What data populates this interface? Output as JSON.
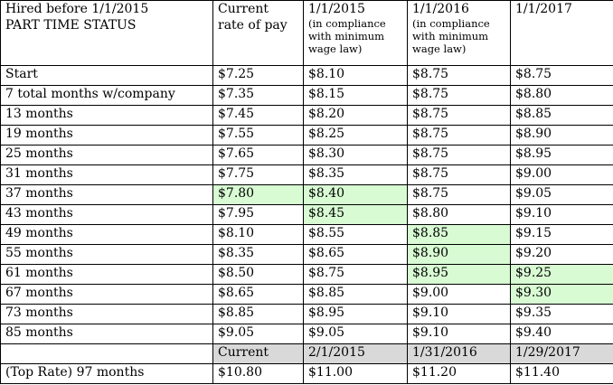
{
  "header": {
    "row_label_lines": [
      "Hired before 1/1/2015",
      "PART TIME STATUS"
    ],
    "columns": [
      {
        "lines": [
          "Current",
          "rate of pay"
        ],
        "sub": []
      },
      {
        "lines": [
          "1/1/2015"
        ],
        "sub": [
          "(in compliance",
          "with minimum",
          "wage law)"
        ]
      },
      {
        "lines": [
          "1/1/2016"
        ],
        "sub": [
          "(in compliance",
          "with minimum",
          "wage law)"
        ]
      },
      {
        "lines": [
          "1/1/2017"
        ],
        "sub": []
      }
    ]
  },
  "rows": [
    {
      "label": "Start",
      "values": [
        "$7.25",
        "$8.10",
        "$8.75",
        "$8.75"
      ],
      "highlight": [
        false,
        false,
        false,
        false
      ]
    },
    {
      "label": "7 total months w/company",
      "values": [
        "$7.35",
        "$8.15",
        "$8.75",
        "$8.80"
      ],
      "highlight": [
        false,
        false,
        false,
        false
      ]
    },
    {
      "label": "13 months",
      "values": [
        "$7.45",
        "$8.20",
        "$8.75",
        "$8.85"
      ],
      "highlight": [
        false,
        false,
        false,
        false
      ]
    },
    {
      "label": "19 months",
      "values": [
        "$7.55",
        "$8.25",
        "$8.75",
        "$8.90"
      ],
      "highlight": [
        false,
        false,
        false,
        false
      ]
    },
    {
      "label": "25 months",
      "values": [
        "$7.65",
        "$8.30",
        "$8.75",
        "$8.95"
      ],
      "highlight": [
        false,
        false,
        false,
        false
      ]
    },
    {
      "label": "31 months",
      "values": [
        "$7.75",
        "$8.35",
        "$8.75",
        "$9.00"
      ],
      "highlight": [
        false,
        false,
        false,
        false
      ]
    },
    {
      "label": "37 months",
      "values": [
        "$7.80",
        "$8.40",
        "$8.75",
        "$9.05"
      ],
      "highlight": [
        true,
        true,
        false,
        false
      ]
    },
    {
      "label": "43 months",
      "values": [
        "$7.95",
        "$8.45",
        "$8.80",
        "$9.10"
      ],
      "highlight": [
        false,
        true,
        false,
        false
      ]
    },
    {
      "label": "49 months",
      "values": [
        "$8.10",
        "$8.55",
        "$8.85",
        "$9.15"
      ],
      "highlight": [
        false,
        false,
        true,
        false
      ]
    },
    {
      "label": "55 months",
      "values": [
        "$8.35",
        "$8.65",
        "$8.90",
        "$9.20"
      ],
      "highlight": [
        false,
        false,
        true,
        false
      ]
    },
    {
      "label": "61 months",
      "values": [
        "$8.50",
        "$8.75",
        "$8.95",
        "$9.25"
      ],
      "highlight": [
        false,
        false,
        true,
        true
      ]
    },
    {
      "label": "67 months",
      "values": [
        "$8.65",
        "$8.85",
        "$9.00",
        "$9.30"
      ],
      "highlight": [
        false,
        false,
        false,
        true
      ]
    },
    {
      "label": "73 months",
      "values": [
        "$8.85",
        "$8.95",
        "$9.10",
        "$9.35"
      ],
      "highlight": [
        false,
        false,
        false,
        false
      ]
    },
    {
      "label": "85 months",
      "values": [
        "$9.05",
        "$9.05",
        "$9.10",
        "$9.40"
      ],
      "highlight": [
        false,
        false,
        false,
        false
      ]
    }
  ],
  "label_row": {
    "label": "",
    "values": [
      "Current",
      "2/1/2015",
      "1/31/2016",
      "1/29/2017"
    ]
  },
  "top_row": {
    "label": "(Top Rate) 97 months",
    "values": [
      "$10.80",
      "$11.00",
      "$11.20",
      "$11.40"
    ]
  },
  "colors": {
    "highlight": "#d8fbd3",
    "label_row_bg": "#d9d9d9",
    "border": "#000000"
  }
}
